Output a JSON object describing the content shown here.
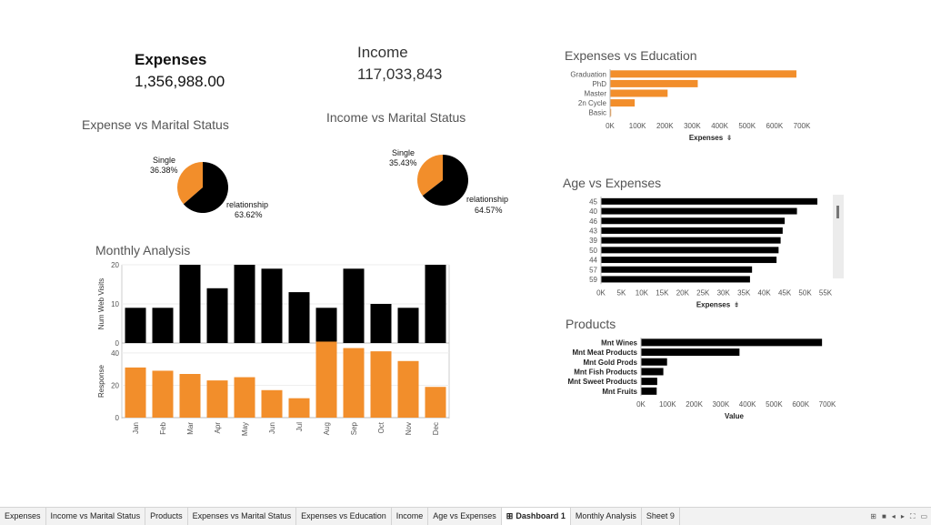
{
  "kpis": {
    "expenses_label": "Expenses",
    "expenses_value": "1,356,988.00",
    "income_label": "Income",
    "income_value": "117,033,843"
  },
  "colors": {
    "orange": "#F28E2B",
    "black": "#000000",
    "axis": "#888888"
  },
  "chart_data": [
    {
      "id": "expense_marital",
      "type": "pie",
      "title": "Expense vs Marital Status",
      "slices": [
        {
          "label": "Single",
          "pct_label": "36.38%",
          "value": 36.38,
          "color": "#F28E2B"
        },
        {
          "label": "relationship",
          "pct_label": "63.62%",
          "value": 63.62,
          "color": "#000000"
        }
      ]
    },
    {
      "id": "income_marital",
      "type": "pie",
      "title": "Income vs Marital Status",
      "slices": [
        {
          "label": "Single",
          "pct_label": "35.43%",
          "value": 35.43,
          "color": "#F28E2B"
        },
        {
          "label": "relationship",
          "pct_label": "64.57%",
          "value": 64.57,
          "color": "#000000"
        }
      ]
    },
    {
      "id": "expenses_education",
      "type": "bar",
      "orientation": "horizontal",
      "title": "Expenses vs Education",
      "categories": [
        "Graduation",
        "PhD",
        "Master",
        "2n Cycle",
        "Basic"
      ],
      "values": [
        680000,
        320000,
        210000,
        90000,
        4000
      ],
      "xlabel": "Expenses",
      "xlim": [
        0,
        700000
      ],
      "ticks": [
        "0K",
        "100K",
        "200K",
        "300K",
        "400K",
        "500K",
        "600K",
        "700K"
      ],
      "color": "#F28E2B"
    },
    {
      "id": "age_expenses",
      "type": "bar",
      "orientation": "horizontal",
      "title": "Age vs Expenses",
      "categories": [
        "45",
        "40",
        "46",
        "43",
        "39",
        "50",
        "44",
        "57",
        "59"
      ],
      "values": [
        53000,
        48000,
        45000,
        44500,
        44000,
        43500,
        43000,
        37000,
        36500
      ],
      "xlabel": "Expenses",
      "xlim": [
        0,
        55000
      ],
      "ticks": [
        "0K",
        "5K",
        "10K",
        "15K",
        "20K",
        "25K",
        "30K",
        "35K",
        "40K",
        "45K",
        "50K",
        "55K"
      ],
      "color": "#000000"
    },
    {
      "id": "products",
      "type": "bar",
      "orientation": "horizontal",
      "title": "Products",
      "categories": [
        "Mnt Wines",
        "Mnt Meat Products",
        "Mnt Gold Prods",
        "Mnt Fish Products",
        "Mnt Sweet Products",
        "Mnt Fruits"
      ],
      "values": [
        680000,
        370000,
        98000,
        84000,
        61000,
        59000
      ],
      "xlabel": "Value",
      "xlim": [
        0,
        700000
      ],
      "ticks": [
        "0K",
        "100K",
        "200K",
        "300K",
        "400K",
        "500K",
        "600K",
        "700K"
      ],
      "color": "#000000"
    },
    {
      "id": "monthly",
      "type": "bar",
      "title": "Monthly Analysis",
      "categories": [
        "Jan",
        "Feb",
        "Mar",
        "Apr",
        "May",
        "Jun",
        "Jul",
        "Aug",
        "Sep",
        "Oct",
        "Nov",
        "Dec"
      ],
      "series": [
        {
          "name": "Num Web Visits",
          "values": [
            9,
            9,
            20,
            14,
            20,
            19,
            13,
            9,
            19,
            10,
            9,
            20
          ],
          "color": "#000000",
          "ylim": [
            0,
            20
          ],
          "ticks": [
            "0",
            "10",
            "20"
          ]
        },
        {
          "name": "Response",
          "values": [
            31,
            29,
            27,
            23,
            25,
            17,
            12,
            47,
            43,
            41,
            35,
            19
          ],
          "color": "#F28E2B",
          "ylim": [
            0,
            45
          ],
          "ticks": [
            "0",
            "20",
            "40"
          ]
        }
      ]
    }
  ],
  "tabs": [
    {
      "label": "Expenses",
      "active": false
    },
    {
      "label": "Income vs Marital Status",
      "active": false
    },
    {
      "label": "Products",
      "active": false
    },
    {
      "label": "Expenses vs Marital Status",
      "active": false
    },
    {
      "label": "Expenses vs Education",
      "active": false
    },
    {
      "label": "Income",
      "active": false
    },
    {
      "label": "Age vs Expenses",
      "active": false
    },
    {
      "label": "Dashboard 1",
      "active": true
    },
    {
      "label": "Monthly Analysis",
      "active": false
    },
    {
      "label": "Sheet 9",
      "active": false
    }
  ],
  "tab_icons": {
    "dashboard": "⊞",
    "nav": [
      "⊞",
      "■",
      "◂",
      "▸",
      "⛶",
      "▭"
    ]
  }
}
